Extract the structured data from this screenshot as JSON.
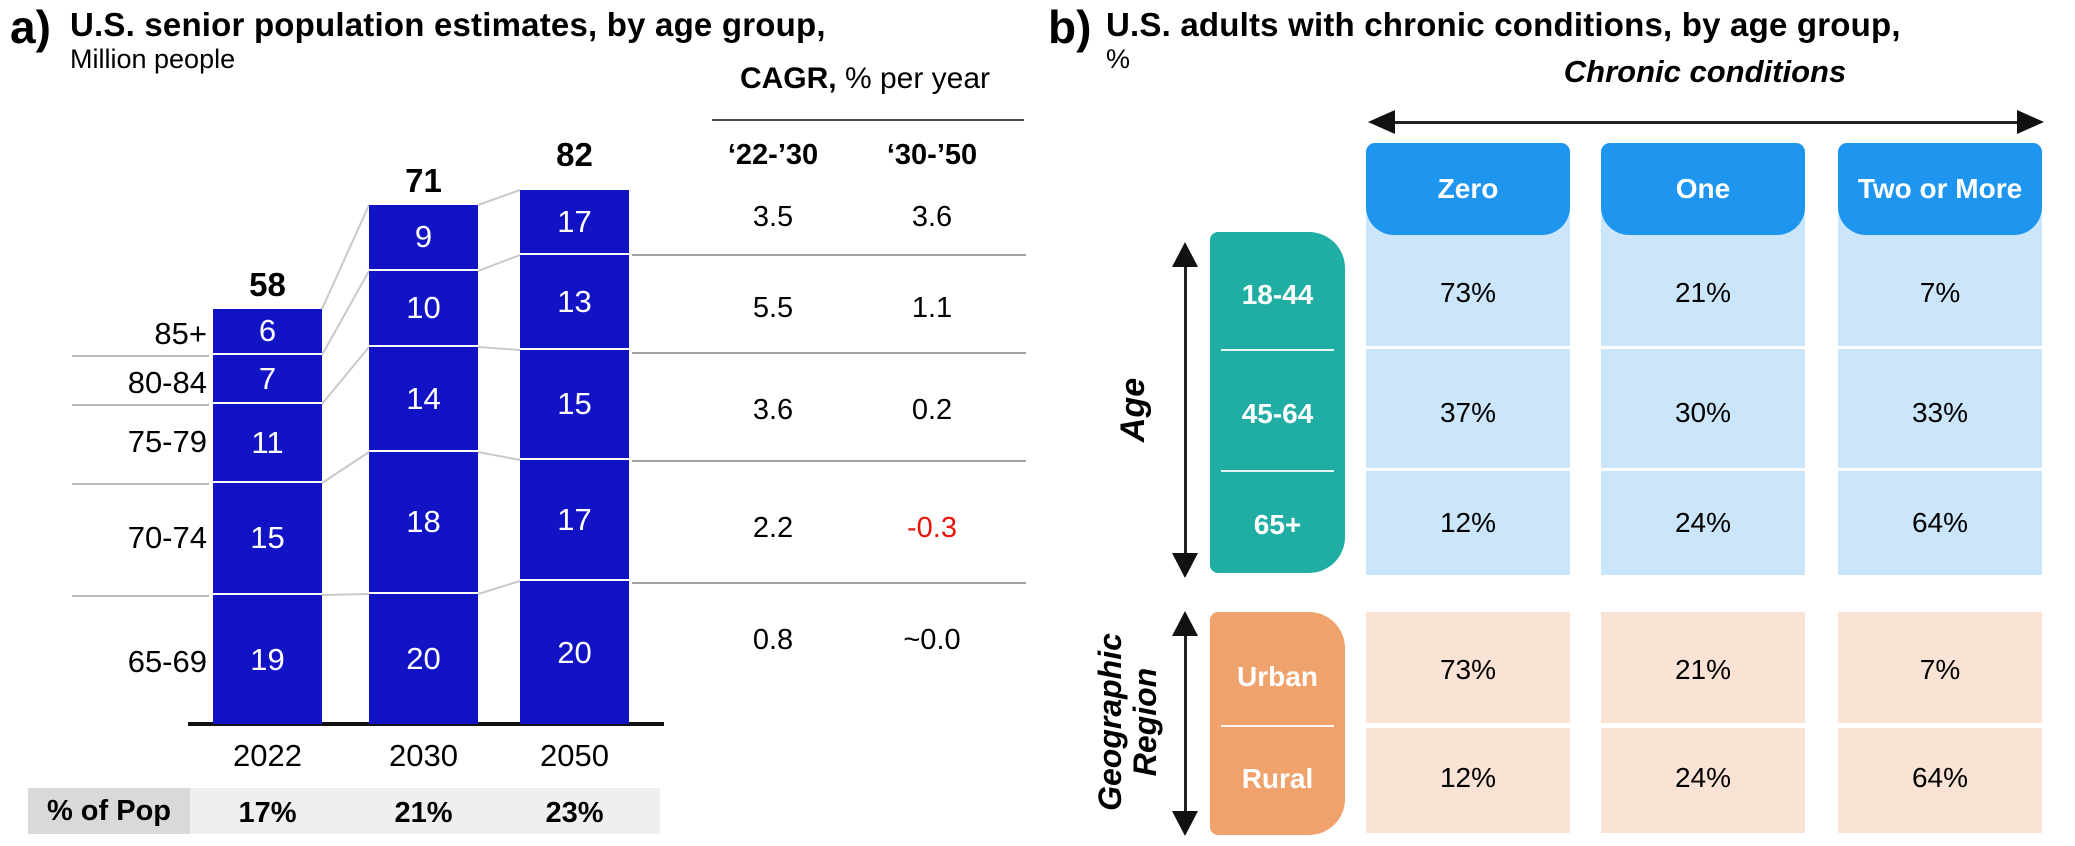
{
  "panel_a": {
    "label": "a)",
    "title": "U.S. senior population estimates, by age group,",
    "subtitle": "Million people",
    "bar_color": "#1313c6",
    "cagr": {
      "title_bold": "CAGR,",
      "title_rest": " % per year",
      "col_headers": [
        "‘22-’30",
        "‘30-’50"
      ],
      "rows": [
        [
          "3.5",
          "3.6"
        ],
        [
          "5.5",
          "1.1"
        ],
        [
          "3.6",
          "0.2"
        ],
        [
          "2.2",
          "-0.3"
        ],
        [
          "0.8",
          "~0.0"
        ]
      ],
      "negative_color": "#e8130c"
    },
    "age_groups": [
      "85+",
      "80-84",
      "75-79",
      "70-74",
      "65-69"
    ],
    "bars": [
      {
        "year": "2022",
        "total": "58",
        "segments": [
          6,
          7,
          11,
          15,
          19
        ],
        "pct_of_pop": "17%"
      },
      {
        "year": "2030",
        "total": "71",
        "segments": [
          9,
          10,
          14,
          18,
          20
        ],
        "pct_of_pop": "21%"
      },
      {
        "year": "2050",
        "total": "82",
        "segments": [
          17,
          13,
          15,
          17,
          20
        ],
        "pct_of_pop": "23%"
      }
    ],
    "pop_row_label": "% of Pop"
  },
  "panel_b": {
    "label": "b)",
    "title": "U.S. adults with chronic conditions, by age group,",
    "subtitle": "%",
    "axis_title": "Chronic conditions",
    "header_color": "#1e96f0",
    "col_headers": [
      "Zero",
      "One",
      "Two or More"
    ],
    "row_groups": [
      {
        "label": "Age",
        "box_color": "#1fada4",
        "cell_color": "#cbe6fa",
        "rows": [
          {
            "label": "18-44",
            "values": [
              "73%",
              "21%",
              "7%"
            ]
          },
          {
            "label": "45-64",
            "values": [
              "37%",
              "30%",
              "33%"
            ]
          },
          {
            "label": "65+",
            "values": [
              "12%",
              "24%",
              "64%"
            ]
          }
        ]
      },
      {
        "label": "Geographic Region",
        "box_color": "#f0a26c",
        "cell_color": "#fae3d4",
        "rows": [
          {
            "label": "Urban",
            "values": [
              "73%",
              "21%",
              "7%"
            ]
          },
          {
            "label": "Rural",
            "values": [
              "12%",
              "24%",
              "64%"
            ]
          }
        ]
      }
    ]
  },
  "chart_data": [
    {
      "type": "bar",
      "stacked": true,
      "title": "U.S. senior population estimates, by age group",
      "ylabel": "Million people",
      "categories": [
        "2022",
        "2030",
        "2050"
      ],
      "series": [
        {
          "name": "65-69",
          "values": [
            19,
            20,
            20
          ]
        },
        {
          "name": "70-74",
          "values": [
            15,
            18,
            17
          ]
        },
        {
          "name": "75-79",
          "values": [
            11,
            14,
            15
          ]
        },
        {
          "name": "80-84",
          "values": [
            7,
            10,
            13
          ]
        },
        {
          "name": "85+",
          "values": [
            6,
            9,
            17
          ]
        }
      ],
      "totals": [
        58,
        71,
        82
      ],
      "pct_of_population": [
        "17%",
        "21%",
        "23%"
      ],
      "cagr_pct_per_year": {
        "columns": [
          "'22-'30",
          "'30-'50"
        ],
        "rows": [
          {
            "group": "85+",
            "values": [
              "3.5",
              "3.6"
            ]
          },
          {
            "group": "80-84",
            "values": [
              "5.5",
              "1.1"
            ]
          },
          {
            "group": "75-79",
            "values": [
              "3.6",
              "0.2"
            ]
          },
          {
            "group": "70-74",
            "values": [
              "2.2",
              "-0.3"
            ]
          },
          {
            "group": "65-69",
            "values": [
              "0.8",
              "~0.0"
            ]
          }
        ]
      },
      "legend_position": "left-row-labels",
      "grid": false
    },
    {
      "type": "table",
      "title": "U.S. adults with chronic conditions, by age group (%)",
      "columns_axis_label": "Chronic conditions",
      "columns": [
        "Zero",
        "One",
        "Two or More"
      ],
      "row_groups": [
        {
          "group": "Age",
          "rows": [
            {
              "label": "18-44",
              "values": [
                "73%",
                "21%",
                "7%"
              ]
            },
            {
              "label": "45-64",
              "values": [
                "37%",
                "30%",
                "33%"
              ]
            },
            {
              "label": "65+",
              "values": [
                "12%",
                "24%",
                "64%"
              ]
            }
          ]
        },
        {
          "group": "Geographic Region",
          "rows": [
            {
              "label": "Urban",
              "values": [
                "73%",
                "21%",
                "7%"
              ]
            },
            {
              "label": "Rural",
              "values": [
                "12%",
                "24%",
                "64%"
              ]
            }
          ]
        }
      ]
    }
  ]
}
